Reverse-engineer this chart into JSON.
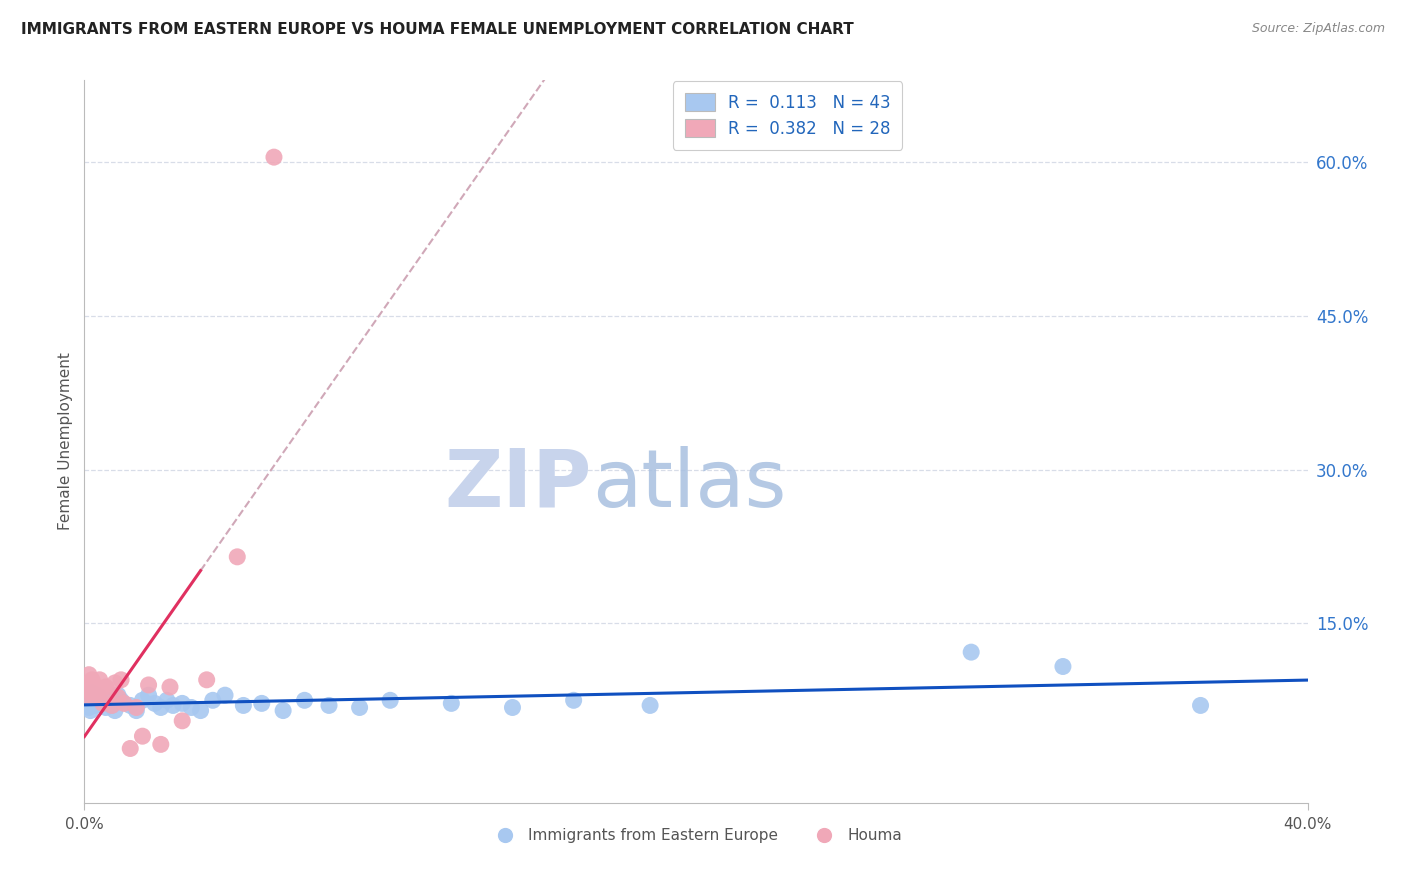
{
  "title": "IMMIGRANTS FROM EASTERN EUROPE VS HOUMA FEMALE UNEMPLOYMENT CORRELATION CHART",
  "source": "Source: ZipAtlas.com",
  "ylabel": "Female Unemployment",
  "legend_label1": "Immigrants from Eastern Europe",
  "legend_label2": "Houma",
  "R1": 0.113,
  "N1": 43,
  "R2": 0.382,
  "N2": 28,
  "color_blue": "#A8C8F0",
  "color_pink": "#F0A8B8",
  "color_blue_line": "#1050C0",
  "color_pink_line": "#E03060",
  "color_dashed": "#D0A8B8",
  "ytick_labels": [
    "15.0%",
    "30.0%",
    "45.0%",
    "60.0%"
  ],
  "ytick_values": [
    0.15,
    0.3,
    0.45,
    0.6
  ],
  "xlim": [
    0.0,
    0.4
  ],
  "ylim": [
    -0.025,
    0.68
  ],
  "blue_scatter_x": [
    0.0005,
    0.001,
    0.0015,
    0.002,
    0.0025,
    0.003,
    0.0035,
    0.004,
    0.005,
    0.006,
    0.007,
    0.008,
    0.009,
    0.01,
    0.011,
    0.012,
    0.015,
    0.017,
    0.019,
    0.021,
    0.023,
    0.025,
    0.027,
    0.029,
    0.032,
    0.035,
    0.038,
    0.042,
    0.046,
    0.052,
    0.058,
    0.065,
    0.072,
    0.08,
    0.09,
    0.1,
    0.12,
    0.14,
    0.16,
    0.185,
    0.29,
    0.32,
    0.365
  ],
  "blue_scatter_y": [
    0.072,
    0.078,
    0.068,
    0.065,
    0.082,
    0.075,
    0.07,
    0.08,
    0.078,
    0.072,
    0.068,
    0.075,
    0.07,
    0.065,
    0.08,
    0.075,
    0.07,
    0.065,
    0.075,
    0.08,
    0.072,
    0.068,
    0.075,
    0.07,
    0.072,
    0.068,
    0.065,
    0.075,
    0.08,
    0.07,
    0.072,
    0.065,
    0.075,
    0.07,
    0.068,
    0.075,
    0.072,
    0.068,
    0.075,
    0.07,
    0.122,
    0.108,
    0.07
  ],
  "pink_scatter_x": [
    0.0003,
    0.0008,
    0.001,
    0.0015,
    0.002,
    0.0025,
    0.003,
    0.0035,
    0.004,
    0.005,
    0.006,
    0.007,
    0.008,
    0.009,
    0.01,
    0.011,
    0.012,
    0.013,
    0.015,
    0.017,
    0.019,
    0.021,
    0.025,
    0.028,
    0.032,
    0.04,
    0.05,
    0.062
  ],
  "pink_scatter_y": [
    0.08,
    0.09,
    0.085,
    0.1,
    0.092,
    0.095,
    0.078,
    0.088,
    0.082,
    0.095,
    0.072,
    0.088,
    0.082,
    0.07,
    0.092,
    0.078,
    0.095,
    0.072,
    0.028,
    0.068,
    0.04,
    0.09,
    0.032,
    0.088,
    0.055,
    0.095,
    0.215,
    0.605
  ],
  "pink_trend_x_start": 0.0,
  "pink_trend_x_solid_end": 0.038,
  "pink_trend_x_dash_end": 0.4,
  "watermark_zip": "ZIP",
  "watermark_atlas": "atlas",
  "watermark_color": "#D0DCF0",
  "background_color": "#FFFFFF",
  "grid_color": "#D8DDE8"
}
